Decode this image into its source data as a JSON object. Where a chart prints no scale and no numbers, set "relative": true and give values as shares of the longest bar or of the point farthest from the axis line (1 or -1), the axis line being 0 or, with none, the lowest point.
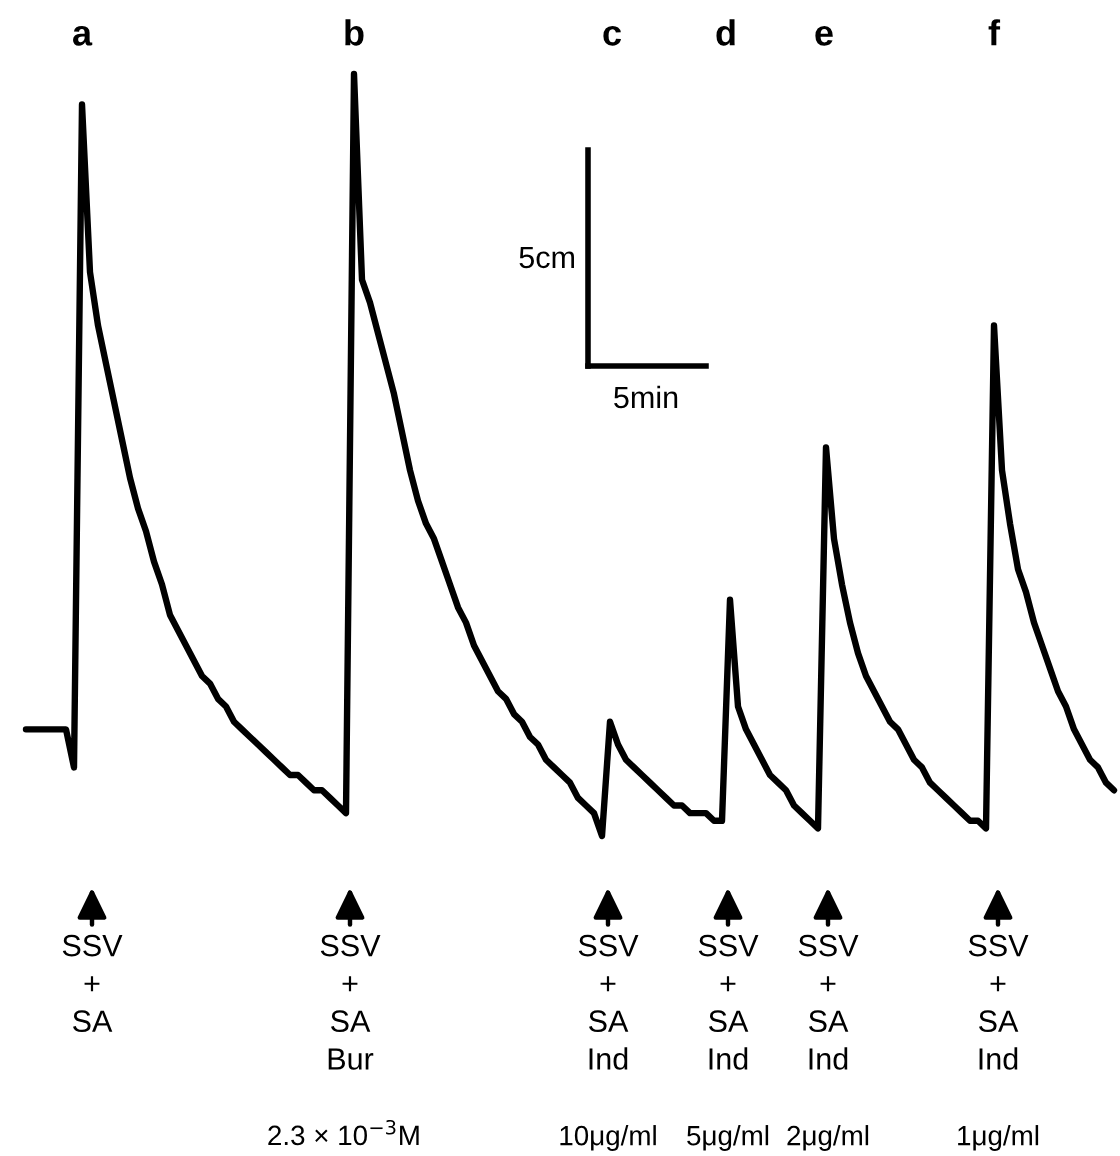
{
  "chart_data": {
    "type": "line",
    "relative": true,
    "color": "#000000",
    "categories": [
      null,
      null,
      null,
      null,
      null,
      null,
      null,
      null,
      null,
      null,
      null,
      null,
      null,
      null,
      null,
      null,
      null,
      null,
      null,
      null,
      null,
      null,
      null,
      null,
      null,
      null,
      null,
      null,
      null,
      null,
      null,
      null,
      null,
      null,
      null,
      null,
      null,
      null,
      null,
      null,
      null,
      null,
      null,
      null,
      null,
      null,
      null,
      null,
      null,
      null,
      null,
      null,
      null,
      null,
      null,
      null,
      null,
      null,
      null,
      null,
      null,
      null,
      null,
      null,
      null,
      null,
      null,
      null,
      null,
      null,
      null,
      null,
      null,
      null,
      null,
      null,
      null,
      null,
      null,
      null,
      null,
      null,
      null,
      null,
      null,
      null,
      null,
      null,
      null,
      null,
      null,
      null,
      null,
      null,
      null,
      null,
      null,
      null,
      null,
      null,
      null,
      null,
      null,
      null,
      null,
      null,
      null,
      null,
      null,
      null,
      null,
      null,
      null,
      null,
      null,
      null,
      null,
      null,
      null,
      null,
      null,
      null,
      null,
      null,
      null,
      null,
      null,
      null,
      null,
      null,
      null,
      null,
      null,
      null,
      null,
      null,
      null
    ],
    "values": [
      0.14,
      0.14,
      0.14,
      0.14,
      0.14,
      0.14,
      0.09,
      0.96,
      0.74,
      0.67,
      0.62,
      0.57,
      0.52,
      0.47,
      0.43,
      0.4,
      0.36,
      0.33,
      0.29,
      0.27,
      0.25,
      0.23,
      0.21,
      0.2,
      0.18,
      0.17,
      0.15,
      0.14,
      0.13,
      0.12,
      0.11,
      0.1,
      0.09,
      0.08,
      0.08,
      0.07,
      0.06,
      0.06,
      0.05,
      0.04,
      0.03,
      1.0,
      0.73,
      0.7,
      0.66,
      0.62,
      0.58,
      0.53,
      0.48,
      0.44,
      0.41,
      0.39,
      0.36,
      0.33,
      0.3,
      0.28,
      0.25,
      0.23,
      0.21,
      0.19,
      0.18,
      0.16,
      0.15,
      0.13,
      0.12,
      0.1,
      0.09,
      0.08,
      0.07,
      0.05,
      0.04,
      0.03,
      0.0,
      0.15,
      0.12,
      0.1,
      0.09,
      0.08,
      0.07,
      0.06,
      0.05,
      0.04,
      0.04,
      0.03,
      0.03,
      0.03,
      0.02,
      0.02,
      0.31,
      0.17,
      0.14,
      0.12,
      0.1,
      0.08,
      0.07,
      0.06,
      0.04,
      0.03,
      0.02,
      0.01,
      0.51,
      0.39,
      0.33,
      0.28,
      0.24,
      0.21,
      0.19,
      0.17,
      0.15,
      0.14,
      0.12,
      0.1,
      0.09,
      0.07,
      0.06,
      0.05,
      0.04,
      0.03,
      0.02,
      0.02,
      0.01,
      0.67,
      0.48,
      0.41,
      0.35,
      0.32,
      0.28,
      0.25,
      0.22,
      0.19,
      0.17,
      0.14,
      0.12,
      0.1,
      0.09,
      0.07,
      0.06
    ],
    "annotations": [
      "a",
      "b",
      "c",
      "d",
      "e",
      "f",
      "5cm",
      "5min",
      "SSV\n+\nSA",
      "SSV\n+\nSA\nBur",
      "SSV\n+\nSA\nInd",
      "SSV\n+\nSA\nInd",
      "SSV\n+\nSA\nInd",
      "SSV\n+\nSA\nInd",
      "2.3 × 10$^{−3}$M",
      "10μg/ml",
      "5μg/ml",
      "2μg/ml",
      "1μg/ml"
    ]
  }
}
